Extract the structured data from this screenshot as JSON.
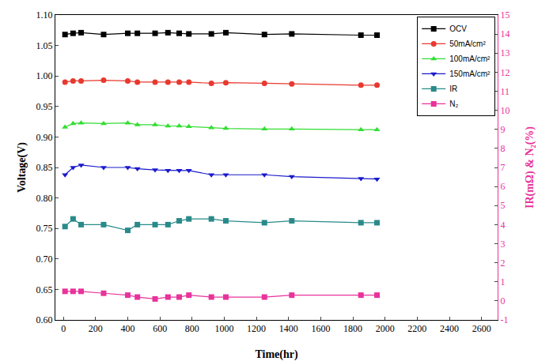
{
  "chart_data": {
    "type": "line",
    "x_label": "Time(hr)",
    "y_label": "Voltage(V)",
    "y2_label": "IR(mΩ) & N₂(%)",
    "x": [
      10,
      60,
      110,
      250,
      400,
      460,
      570,
      650,
      720,
      780,
      920,
      1010,
      1250,
      1420,
      1850,
      1950
    ],
    "xlim": [
      -50,
      2700
    ],
    "xticks": [
      0,
      200,
      400,
      600,
      800,
      1000,
      1200,
      1400,
      1600,
      1800,
      2000,
      2200,
      2400,
      2600
    ],
    "ylim": [
      0.6,
      1.1
    ],
    "yticks": [
      {
        "value": 0.6,
        "label": "0.60"
      },
      {
        "value": 0.65,
        "label": "0.65"
      },
      {
        "value": 0.7,
        "label": "0.70"
      },
      {
        "value": 0.75,
        "label": "0.75"
      },
      {
        "value": 0.8,
        "label": "0.80"
      },
      {
        "value": 0.85,
        "label": "0.85"
      },
      {
        "value": 0.9,
        "label": "0.90"
      },
      {
        "value": 0.95,
        "label": "0.95"
      },
      {
        "value": 1.0,
        "label": "1.00"
      },
      {
        "value": 1.05,
        "label": "1.05"
      },
      {
        "value": 1.1,
        "label": "1.10"
      }
    ],
    "y2lim": [
      -1,
      15
    ],
    "y2ticks": [
      -1,
      0,
      1,
      2,
      3,
      4,
      5,
      6,
      7,
      8,
      9,
      10,
      11,
      12,
      13,
      14,
      15
    ],
    "grid": false,
    "legend": "upper right",
    "series": [
      {
        "name": "OCV",
        "color": "#000000",
        "marker": "square",
        "line_style": "solid",
        "values": [
          1.068,
          1.07,
          1.071,
          1.068,
          1.07,
          1.07,
          1.07,
          1.071,
          1.07,
          1.069,
          1.069,
          1.071,
          1.068,
          1.069,
          1.067,
          1.067
        ]
      },
      {
        "name": "50mA/cm²",
        "color": "#e8392f",
        "marker": "circle",
        "line_style": "solid",
        "values": [
          0.99,
          0.992,
          0.992,
          0.993,
          0.992,
          0.99,
          0.99,
          0.99,
          0.99,
          0.99,
          0.988,
          0.989,
          0.988,
          0.987,
          0.985,
          0.985
        ]
      },
      {
        "name": "100mA/cm²",
        "color": "#33dd33",
        "marker": "triangle-up",
        "line_style": "solid",
        "values": [
          0.916,
          0.922,
          0.923,
          0.922,
          0.923,
          0.92,
          0.92,
          0.918,
          0.918,
          0.917,
          0.915,
          0.914,
          0.913,
          0.913,
          0.912,
          0.912
        ]
      },
      {
        "name": "150mA/cm²",
        "color": "#1a1acc",
        "marker": "triangle-down",
        "line_style": "solid",
        "values": [
          0.838,
          0.85,
          0.854,
          0.85,
          0.85,
          0.848,
          0.846,
          0.845,
          0.845,
          0.845,
          0.838,
          0.838,
          0.838,
          0.835,
          0.832,
          0.831
        ]
      },
      {
        "name": "IR",
        "color": "#2a8a8a",
        "marker": "square",
        "line_style": "solid",
        "axis": "y2",
        "values": [
          3.9,
          4.3,
          4.0,
          4.0,
          3.7,
          4.0,
          4.0,
          4.0,
          4.2,
          4.3,
          4.3,
          4.2,
          4.1,
          4.2,
          4.1,
          4.1
        ]
      },
      {
        "name": "N₂",
        "color": "#e8339b",
        "marker": "square",
        "line_style": "solid",
        "axis": "y2",
        "values": [
          0.5,
          0.5,
          0.5,
          0.4,
          0.3,
          0.2,
          0.1,
          0.2,
          0.2,
          0.3,
          0.2,
          0.2,
          0.2,
          0.3,
          0.3,
          0.3
        ]
      }
    ]
  }
}
